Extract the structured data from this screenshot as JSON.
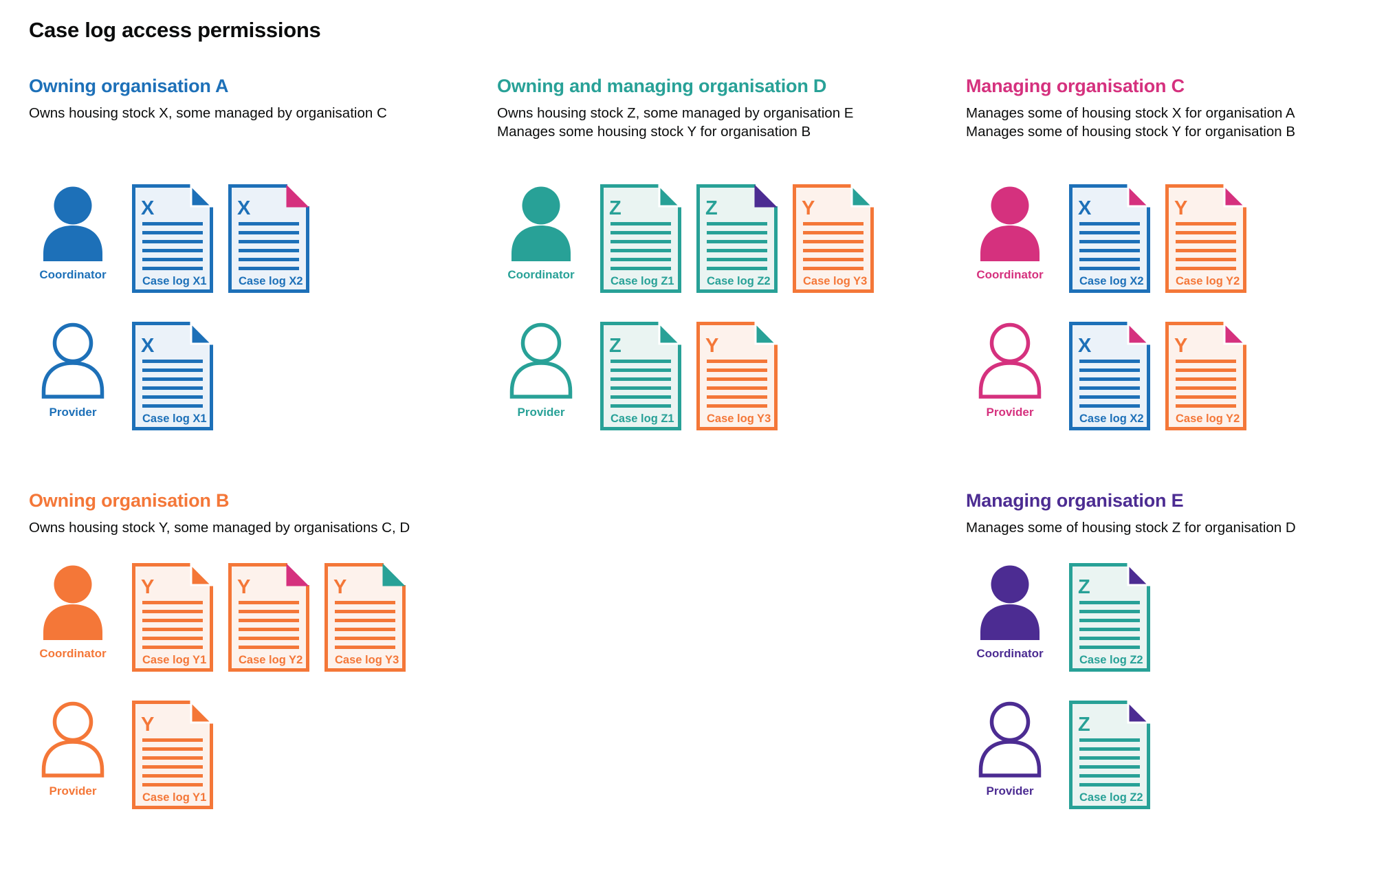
{
  "page_title": "Case log access permissions",
  "colors": {
    "blue": "#1d70b8",
    "orange": "#f47738",
    "teal": "#28a197",
    "pink": "#d5317e",
    "purple": "#4c2c92",
    "text": "#0b0c0c",
    "blue_tint": "#ebf2f9",
    "orange_tint": "#fdf2ec",
    "teal_tint": "#eaf4f2"
  },
  "sections": [
    {
      "id": "owning-organisation-a",
      "title": "Owning organisation A",
      "color": "blue",
      "description": [
        "Owns housing stock X, some managed by organisation C"
      ],
      "rows": [
        {
          "role": "Coordinator",
          "person_style": "filled",
          "docs": [
            {
              "letter": "X",
              "label": "Case log X1",
              "color": "blue",
              "fold": "blue",
              "notch": true
            },
            {
              "letter": "X",
              "label": "Case log X2",
              "color": "blue",
              "fold": "pink",
              "notch": false
            }
          ]
        },
        {
          "role": "Provider",
          "person_style": "outline",
          "docs": [
            {
              "letter": "X",
              "label": "Case log X1",
              "color": "blue",
              "fold": "blue",
              "notch": true
            }
          ]
        }
      ]
    },
    {
      "id": "owning-and-managing-organisation-d",
      "title": "Owning and managing organisation D",
      "color": "teal",
      "description": [
        "Owns housing stock Z, some managed by organisation E",
        "Manages some housing stock Y for organisation B"
      ],
      "rows": [
        {
          "role": "Coordinator",
          "person_style": "filled",
          "docs": [
            {
              "letter": "Z",
              "label": "Case log Z1",
              "color": "teal",
              "fold": "teal",
              "notch": true
            },
            {
              "letter": "Z",
              "label": "Case log Z2",
              "color": "teal",
              "fold": "purple",
              "notch": false
            },
            {
              "letter": "Y",
              "label": "Case log Y3",
              "color": "orange",
              "fold": "teal",
              "notch": true
            }
          ]
        },
        {
          "role": "Provider",
          "person_style": "outline",
          "docs": [
            {
              "letter": "Z",
              "label": "Case log Z1",
              "color": "teal",
              "fold": "teal",
              "notch": true
            },
            {
              "letter": "Y",
              "label": "Case log Y3",
              "color": "orange",
              "fold": "teal",
              "notch": true
            }
          ]
        }
      ]
    },
    {
      "id": "managing-organisation-c",
      "title": "Managing organisation C",
      "color": "pink",
      "description": [
        "Manages some of housing stock X for organisation A",
        "Manages some of housing stock Y for organisation B"
      ],
      "rows": [
        {
          "role": "Coordinator",
          "person_style": "filled",
          "docs": [
            {
              "letter": "X",
              "label": "Case log X2",
              "color": "blue",
              "fold": "pink",
              "notch": true
            },
            {
              "letter": "Y",
              "label": "Case log Y2",
              "color": "orange",
              "fold": "pink",
              "notch": true
            }
          ]
        },
        {
          "role": "Provider",
          "person_style": "outline",
          "docs": [
            {
              "letter": "X",
              "label": "Case log X2",
              "color": "blue",
              "fold": "pink",
              "notch": true
            },
            {
              "letter": "Y",
              "label": "Case log Y2",
              "color": "orange",
              "fold": "pink",
              "notch": true
            }
          ]
        }
      ]
    },
    {
      "id": "owning-organisation-b",
      "title": "Owning organisation B",
      "color": "orange",
      "description": [
        "Owns housing stock Y, some managed by organisations C, D"
      ],
      "rows": [
        {
          "role": "Coordinator",
          "person_style": "filled",
          "docs": [
            {
              "letter": "Y",
              "label": "Case log Y1",
              "color": "orange",
              "fold": "orange",
              "notch": true
            },
            {
              "letter": "Y",
              "label": "Case log Y2",
              "color": "orange",
              "fold": "pink",
              "notch": false
            },
            {
              "letter": "Y",
              "label": "Case log Y3",
              "color": "orange",
              "fold": "teal",
              "notch": false
            }
          ]
        },
        {
          "role": "Provider",
          "person_style": "outline",
          "docs": [
            {
              "letter": "Y",
              "label": "Case log Y1",
              "color": "orange",
              "fold": "orange",
              "notch": true
            }
          ]
        }
      ]
    },
    {
      "id": "managing-organisation-e",
      "title": "Managing organisation E",
      "color": "purple",
      "description": [
        "Manages some of housing stock Z for organisation D"
      ],
      "rows": [
        {
          "role": "Coordinator",
          "person_style": "filled",
          "docs": [
            {
              "letter": "Z",
              "label": "Case log Z2",
              "color": "teal",
              "fold": "purple",
              "notch": true
            }
          ]
        },
        {
          "role": "Provider",
          "person_style": "outline",
          "docs": [
            {
              "letter": "Z",
              "label": "Case log Z2",
              "color": "teal",
              "fold": "purple",
              "notch": true
            }
          ]
        }
      ]
    }
  ]
}
